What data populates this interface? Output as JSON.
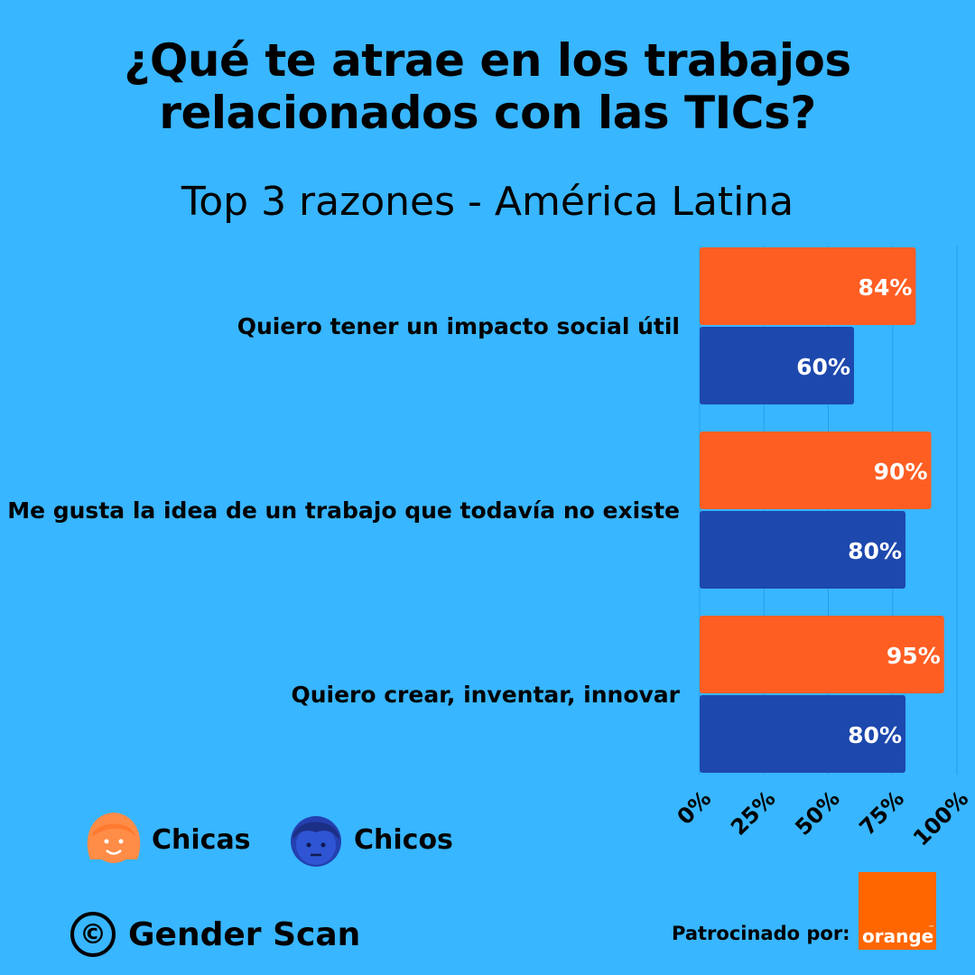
{
  "title_line1": "¿Qué te atrae en los trabajos",
  "title_line2": "relacionados con las TICs?",
  "subtitle": "Top 3 razones - América Latina",
  "colors": {
    "background": "#38b6ff",
    "chicas": "#ff5e23",
    "chicos": "#1d48ad"
  },
  "chart_data": {
    "type": "bar",
    "orientation": "horizontal",
    "categories": [
      "Quiero tener un impacto social útil",
      "Me gusta la idea de un trabajo que todavía no existe",
      "Quiero crear, inventar, innovar"
    ],
    "series": [
      {
        "name": "Chicas",
        "values": [
          84,
          90,
          95
        ],
        "labels": [
          "84%",
          "90%",
          "95%"
        ]
      },
      {
        "name": "Chicos",
        "values": [
          60,
          80,
          80
        ],
        "labels": [
          "60%",
          "80%",
          "80%"
        ]
      }
    ],
    "xlim": [
      0,
      100
    ],
    "x_ticks": [
      0,
      25,
      50,
      75,
      100
    ],
    "x_tick_labels": [
      "0%",
      "25%",
      "50%",
      "75%",
      "100%"
    ],
    "grid": true,
    "legend": "bottom-left"
  },
  "legend": {
    "chicas_label": "Chicas",
    "chicos_label": "Chicos",
    "chicas_icon": "girl-face-icon",
    "chicos_icon": "boy-face-icon"
  },
  "footer": {
    "copyright_symbol": "©",
    "brand": "Gender Scan",
    "sponsor_label": "Patrocinado por:",
    "sponsor_logo_text": "orange",
    "sponsor_logo_tm": "™"
  }
}
